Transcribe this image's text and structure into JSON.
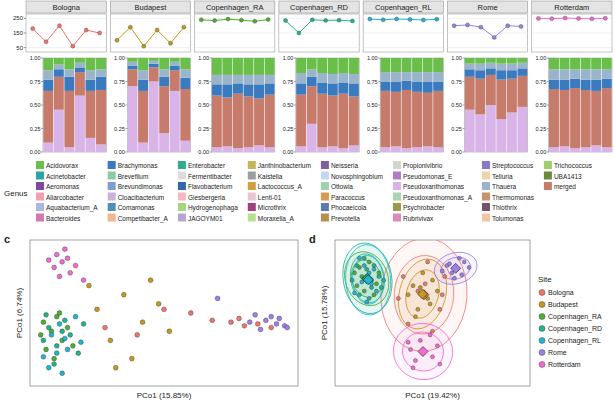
{
  "chart_data": [
    {
      "type": "line",
      "categories": [
        null,
        null,
        null,
        null,
        null,
        null
      ],
      "ylim": [
        20,
        280
      ],
      "yticks": [
        50,
        150,
        250
      ],
      "grid": true,
      "marker": "circle",
      "series": [
        {
          "name": "Bologna",
          "color": "#f0766b",
          "values": [
            180,
            90,
            200,
            60,
            170,
            150
          ]
        },
        {
          "name": "Budapest",
          "color": "#c59a1c",
          "values": [
            100,
            190,
            60,
            170,
            80,
            190
          ]
        },
        {
          "name": "Copenhagen_RA",
          "color": "#4daf2f",
          "values": [
            240,
            235,
            245,
            238,
            230,
            242
          ]
        },
        {
          "name": "Copenhagen_RD",
          "color": "#1fb58e",
          "values": [
            235,
            150,
            240,
            236,
            238,
            232
          ]
        },
        {
          "name": "Copenhagen_RL",
          "color": "#20b5d0",
          "values": [
            245,
            240,
            246,
            243,
            239,
            244
          ]
        },
        {
          "name": "Rome",
          "color": "#9d7fe8",
          "values": [
            200,
            205,
            190,
            120,
            200,
            195
          ]
        },
        {
          "name": "Rotterdam",
          "color": "#f06bd6",
          "values": [
            250,
            248,
            252,
            249,
            247,
            251
          ]
        }
      ]
    },
    {
      "type": "bar",
      "stacked": true,
      "legend": "bottom",
      "legend_title": "Genus",
      "categories": [
        null,
        null,
        null,
        null,
        null,
        null,
        null,
        null,
        null,
        null,
        null,
        null,
        null,
        null,
        null,
        null,
        null,
        null,
        null,
        null,
        null,
        null,
        null,
        null,
        null,
        null,
        null,
        null,
        null,
        null,
        null,
        null,
        null,
        null,
        null,
        null,
        null,
        null,
        null,
        null,
        null,
        null
      ],
      "ylim": [
        0,
        1
      ],
      "yticks": [
        {
          "value": 0,
          "label": "0.00"
        },
        {
          "value": 0.25,
          "label": "0.25"
        },
        {
          "value": 0.5,
          "label": "0.50"
        },
        {
          "value": 0.75,
          "label": "0.75"
        },
        {
          "value": 1,
          "label": "1.00"
        }
      ],
      "series": [
        {
          "name": "Pseudoxanthomonas",
          "color": "#d9b4e8",
          "values": [
            0.1,
            0.45,
            0.05,
            0.6,
            0.15,
            0.08,
            0.7,
            0.1,
            0.75,
            0.2,
            0.65,
            0.12,
            0.05,
            0.06,
            0.04,
            0.05,
            0.07,
            0.05,
            0.06,
            0.3,
            0.05,
            0.06,
            0.04,
            0.07,
            0.05,
            0.06,
            0.04,
            0.05,
            0.06,
            0.05,
            0.45,
            0.4,
            0.5,
            0.35,
            0.42,
            0.48,
            0.05,
            0.06,
            0.04,
            0.05,
            0.07,
            0.05
          ]
        },
        {
          "name": "merged",
          "color": "#c77b6b",
          "values": [
            0.55,
            0.35,
            0.6,
            0.25,
            0.5,
            0.58,
            0.18,
            0.55,
            0.15,
            0.5,
            0.22,
            0.55,
            0.55,
            0.52,
            0.58,
            0.54,
            0.5,
            0.56,
            0.55,
            0.4,
            0.57,
            0.54,
            0.58,
            0.52,
            0.6,
            0.58,
            0.62,
            0.59,
            0.57,
            0.6,
            0.35,
            0.38,
            0.32,
            0.42,
            0.36,
            0.33,
            0.62,
            0.6,
            0.64,
            0.61,
            0.58,
            0.63
          ]
        },
        {
          "name": "Brachymonas",
          "color": "#3a7abf",
          "values": [
            0.12,
            0.08,
            0.15,
            0.05,
            0.12,
            0.14,
            0.04,
            0.12,
            0.04,
            0.1,
            0.05,
            0.12,
            0.12,
            0.14,
            0.11,
            0.13,
            0.15,
            0.12,
            0.12,
            0.1,
            0.12,
            0.13,
            0.12,
            0.14,
            0.1,
            0.11,
            0.1,
            0.11,
            0.12,
            0.1,
            0.08,
            0.09,
            0.07,
            0.1,
            0.09,
            0.08,
            0.1,
            0.11,
            0.1,
            0.11,
            0.12,
            0.1
          ]
        },
        {
          "name": "Thauera",
          "color": "#9ab4cc",
          "values": [
            0.1,
            0.05,
            0.08,
            0.05,
            0.1,
            0.08,
            0.04,
            0.1,
            0.03,
            0.08,
            0.04,
            0.09,
            0.1,
            0.1,
            0.09,
            0.1,
            0.1,
            0.09,
            0.11,
            0.08,
            0.1,
            0.1,
            0.1,
            0.1,
            0.1,
            0.1,
            0.09,
            0.1,
            0.1,
            0.1,
            0.06,
            0.07,
            0.06,
            0.07,
            0.07,
            0.06,
            0.11,
            0.11,
            0.1,
            0.11,
            0.11,
            0.1
          ]
        },
        {
          "name": "Acidovorax",
          "color": "#6abf4b",
          "values": [
            0.13,
            0.07,
            0.12,
            0.05,
            0.13,
            0.12,
            0.04,
            0.13,
            0.03,
            0.12,
            0.04,
            0.12,
            0.18,
            0.18,
            0.18,
            0.18,
            0.18,
            0.18,
            0.16,
            0.12,
            0.16,
            0.17,
            0.16,
            0.17,
            0.15,
            0.15,
            0.15,
            0.15,
            0.15,
            0.15,
            0.06,
            0.06,
            0.05,
            0.06,
            0.06,
            0.05,
            0.12,
            0.12,
            0.12,
            0.12,
            0.12,
            0.12
          ]
        }
      ],
      "legend_items": [
        {
          "name": "Acidovorax",
          "color": "#6abf4b"
        },
        {
          "name": "Acinetobacter",
          "color": "#2ca5a0"
        },
        {
          "name": "Aeromonas",
          "color": "#7b4a9e"
        },
        {
          "name": "Aliarcobacter",
          "color": "#f0a0b0"
        },
        {
          "name": "Aquabacterium_A",
          "color": "#a8b8e0"
        },
        {
          "name": "Bacteroides",
          "color": "#d678b0"
        },
        {
          "name": "Brachymonas",
          "color": "#3a7abf"
        },
        {
          "name": "Brevefilum",
          "color": "#8fc9a8"
        },
        {
          "name": "Brevundimonas",
          "color": "#7d9fcf"
        },
        {
          "name": "Cloacibacterium",
          "color": "#c9b3d9"
        },
        {
          "name": "Comamonas",
          "color": "#4f8fc0"
        },
        {
          "name": "Competibacter_A",
          "color": "#f4b48c"
        },
        {
          "name": "Enterobacter",
          "color": "#2fae8c"
        },
        {
          "name": "Fermentibacter",
          "color": "#dcdcdc"
        },
        {
          "name": "Flavobacterium",
          "color": "#3366aa"
        },
        {
          "name": "Giesbergeria",
          "color": "#f7b7c4"
        },
        {
          "name": "Hydrogenophaga",
          "color": "#a6d67c"
        },
        {
          "name": "JAGOYM01",
          "color": "#b8a5d6"
        },
        {
          "name": "Janthinobacterium",
          "color": "#c8b45a"
        },
        {
          "name": "Kaistella",
          "color": "#99a09a"
        },
        {
          "name": "Lactococcus_A",
          "color": "#d0a040"
        },
        {
          "name": "Lenti-01",
          "color": "#e8c8d0"
        },
        {
          "name": "Microthrix",
          "color": "#a04080"
        },
        {
          "name": "Moraxella_A",
          "color": "#b7e08f"
        },
        {
          "name": "Neisseria",
          "color": "#7f5fa0"
        },
        {
          "name": "Novosphingobium",
          "color": "#c0d8f0"
        },
        {
          "name": "Ottowia",
          "color": "#9fd0b0"
        },
        {
          "name": "Paracoccus",
          "color": "#d89a50"
        },
        {
          "name": "Phocaeicola",
          "color": "#5a7ab0"
        },
        {
          "name": "Prevotella",
          "color": "#b98d4e"
        },
        {
          "name": "Propionivibrio",
          "color": "#d0d8d0"
        },
        {
          "name": "Pseudomonas_E",
          "color": "#b07cc6"
        },
        {
          "name": "Pseudoxanthomonas",
          "color": "#d9b4e8"
        },
        {
          "name": "Pseudoxanthomonas_A",
          "color": "#a9d6b0"
        },
        {
          "name": "Psychrobacter",
          "color": "#9a9a4a"
        },
        {
          "name": "Rubrivivax",
          "color": "#d88ab8"
        },
        {
          "name": "Streptococcus",
          "color": "#8878c8"
        },
        {
          "name": "Telluria",
          "color": "#f0d4b0"
        },
        {
          "name": "Thauera",
          "color": "#9ab4cc"
        },
        {
          "name": "Thermomonas",
          "color": "#c8936a"
        },
        {
          "name": "Thiothrix",
          "color": "#7a5070"
        },
        {
          "name": "Tolumonas",
          "color": "#f3c6a0"
        },
        {
          "name": "Trichococcus",
          "color": "#9fcf6a"
        },
        {
          "name": "UBA1413",
          "color": "#6a8a3a"
        },
        {
          "name": "merged",
          "color": "#c77b6b"
        }
      ]
    },
    {
      "type": "scatter",
      "title": "c",
      "x_label": "PCo1 (15.85%)",
      "y_label": "PCo1 (6.74%)",
      "xlim": [
        -0.4,
        0.6
      ],
      "ylim": [
        -0.4,
        0.4
      ],
      "tick_labels": false,
      "series": [
        {
          "name": "Bologna",
          "color": "#f0766b",
          "x": [
            0.35,
            0.4,
            0.45,
            0.5,
            0.28,
            -0.12,
            0.1,
            0.0,
            0.38,
            0.2
          ],
          "values": [
            -0.05,
            -0.07,
            -0.06,
            -0.08,
            -0.04,
            -0.08,
            0.02,
            -0.12,
            -0.03,
            0.0
          ]
        },
        {
          "name": "Budapest",
          "color": "#c59a1c",
          "x": [
            -0.15,
            -0.05,
            0.02,
            -0.1,
            0.08,
            -0.02,
            0.12,
            -0.18,
            0.05,
            -0.08
          ],
          "values": [
            0.02,
            0.1,
            -0.05,
            -0.15,
            0.05,
            -0.25,
            -0.1,
            0.15,
            0.18,
            -0.3
          ]
        },
        {
          "name": "Copenhagen_RA",
          "color": "#4daf2f",
          "x": [
            -0.35,
            -0.32,
            -0.3,
            -0.28,
            -0.34,
            -0.26,
            -0.31,
            -0.29,
            -0.36,
            -0.24
          ],
          "values": [
            -0.05,
            -0.1,
            -0.02,
            -0.15,
            -0.2,
            -0.08,
            -0.25,
            0.0,
            -0.12,
            -0.18
          ]
        },
        {
          "name": "Copenhagen_RD",
          "color": "#1fb58e",
          "x": [
            -0.33,
            -0.3,
            -0.27,
            -0.35,
            -0.25,
            -0.22,
            -0.31,
            -0.28,
            -0.2,
            -0.34
          ],
          "values": [
            -0.08,
            -0.18,
            -0.04,
            -0.15,
            -0.12,
            -0.22,
            -0.28,
            -0.1,
            -0.06,
            -0.01
          ]
        },
        {
          "name": "Copenhagen_RL",
          "color": "#20b5d0",
          "x": [
            -0.32,
            -0.29,
            -0.26,
            -0.33,
            -0.3,
            -0.27,
            -0.23,
            -0.35,
            -0.21,
            -0.28
          ],
          "values": [
            -0.12,
            -0.06,
            -0.2,
            -0.3,
            -0.22,
            -0.14,
            -0.02,
            -0.24,
            -0.16,
            -0.33
          ]
        },
        {
          "name": "Rome",
          "color": "#9d7fe8",
          "x": [
            0.48,
            0.52,
            0.55,
            0.42,
            0.46,
            0.53,
            0.3,
            0.44,
            0.56,
            0.5
          ],
          "values": [
            -0.04,
            -0.06,
            -0.07,
            -0.05,
            -0.09,
            -0.03,
            0.08,
            -0.01,
            -0.08,
            -0.02
          ]
        },
        {
          "name": "Rotterdam",
          "color": "#f06bd6",
          "x": [
            -0.3,
            -0.28,
            -0.26,
            -0.31,
            -0.25,
            -0.29,
            -0.27,
            -0.23,
            -0.2,
            -0.33
          ],
          "values": [
            0.32,
            0.28,
            0.3,
            0.25,
            0.22,
            0.2,
            0.35,
            0.26,
            0.18,
            0.29
          ]
        }
      ]
    },
    {
      "type": "scatter",
      "title": "d",
      "x_label": "PCo1 (19.42%)",
      "y_label": "PCo1 (15.78%)",
      "xlim": [
        -0.4,
        0.4
      ],
      "ylim": [
        -0.4,
        0.4
      ],
      "tick_labels": false,
      "legend": "right",
      "legend_title": "Site",
      "series": [
        {
          "name": "Bologna",
          "color": "#f0766b",
          "x": [
            -0.12,
            0.03,
            -0.1,
            0.05,
            -0.02,
            -0.14,
            0.0,
            -0.06,
            0.04,
            -0.03
          ],
          "values": [
            0.2,
            0.02,
            -0.06,
            0.2,
            0.28,
            0.08,
            -0.1,
            0.12,
            0.1,
            0.16
          ]
        },
        {
          "name": "Budapest",
          "color": "#c59a1c",
          "x": [
            -0.08,
            -0.02,
            -0.06,
            0.0,
            -0.1,
            -0.04,
            0.02,
            -0.07,
            -0.01,
            -0.05
          ],
          "values": [
            0.15,
            0.08,
            0.02,
            0.18,
            0.1,
            0.22,
            0.12,
            -0.02,
            0.05,
            0.14
          ]
        },
        {
          "name": "Copenhagen_RA",
          "color": "#4daf2f",
          "x": [
            -0.3,
            -0.25,
            -0.28,
            -0.22,
            -0.31,
            -0.26,
            -0.24,
            -0.29,
            -0.23,
            -0.32
          ],
          "values": [
            0.25,
            0.18,
            0.12,
            0.22,
            0.15,
            0.28,
            0.1,
            0.2,
            0.16,
            0.22
          ]
        },
        {
          "name": "Copenhagen_RD",
          "color": "#1fb58e",
          "x": [
            -0.27,
            -0.3,
            -0.24,
            -0.21,
            -0.33,
            -0.26,
            -0.28,
            -0.22,
            -0.31,
            -0.25
          ],
          "values": [
            0.24,
            0.1,
            0.26,
            0.14,
            0.18,
            0.08,
            0.3,
            0.2,
            0.26,
            0.14
          ]
        },
        {
          "name": "Copenhagen_RL",
          "color": "#20b5d0",
          "x": [
            -0.29,
            -0.26,
            -0.23,
            -0.3,
            -0.27,
            -0.2,
            -0.32,
            -0.24,
            -0.28,
            -0.25
          ],
          "values": [
            0.17,
            0.22,
            0.12,
            0.3,
            0.06,
            0.18,
            0.11,
            0.24,
            0.26,
            0.16
          ]
        },
        {
          "name": "Rome",
          "color": "#9d7fe8",
          "x": [
            0.06,
            0.1,
            0.13,
            0.08,
            0.15,
            0.04,
            0.11,
            0.12,
            0.07,
            0.09
          ],
          "values": [
            0.26,
            0.24,
            0.28,
            0.22,
            0.25,
            0.23,
            0.3,
            0.21,
            0.27,
            0.19
          ]
        },
        {
          "name": "Rotterdam",
          "color": "#f06bd6",
          "x": [
            -0.1,
            -0.04,
            0.02,
            -0.07,
            -0.01,
            0.03,
            -0.08,
            -0.05,
            0.0,
            -0.09
          ],
          "values": [
            -0.16,
            -0.22,
            -0.18,
            -0.26,
            -0.12,
            -0.28,
            -0.3,
            -0.15,
            -0.24,
            -0.2
          ]
        }
      ]
    }
  ]
}
